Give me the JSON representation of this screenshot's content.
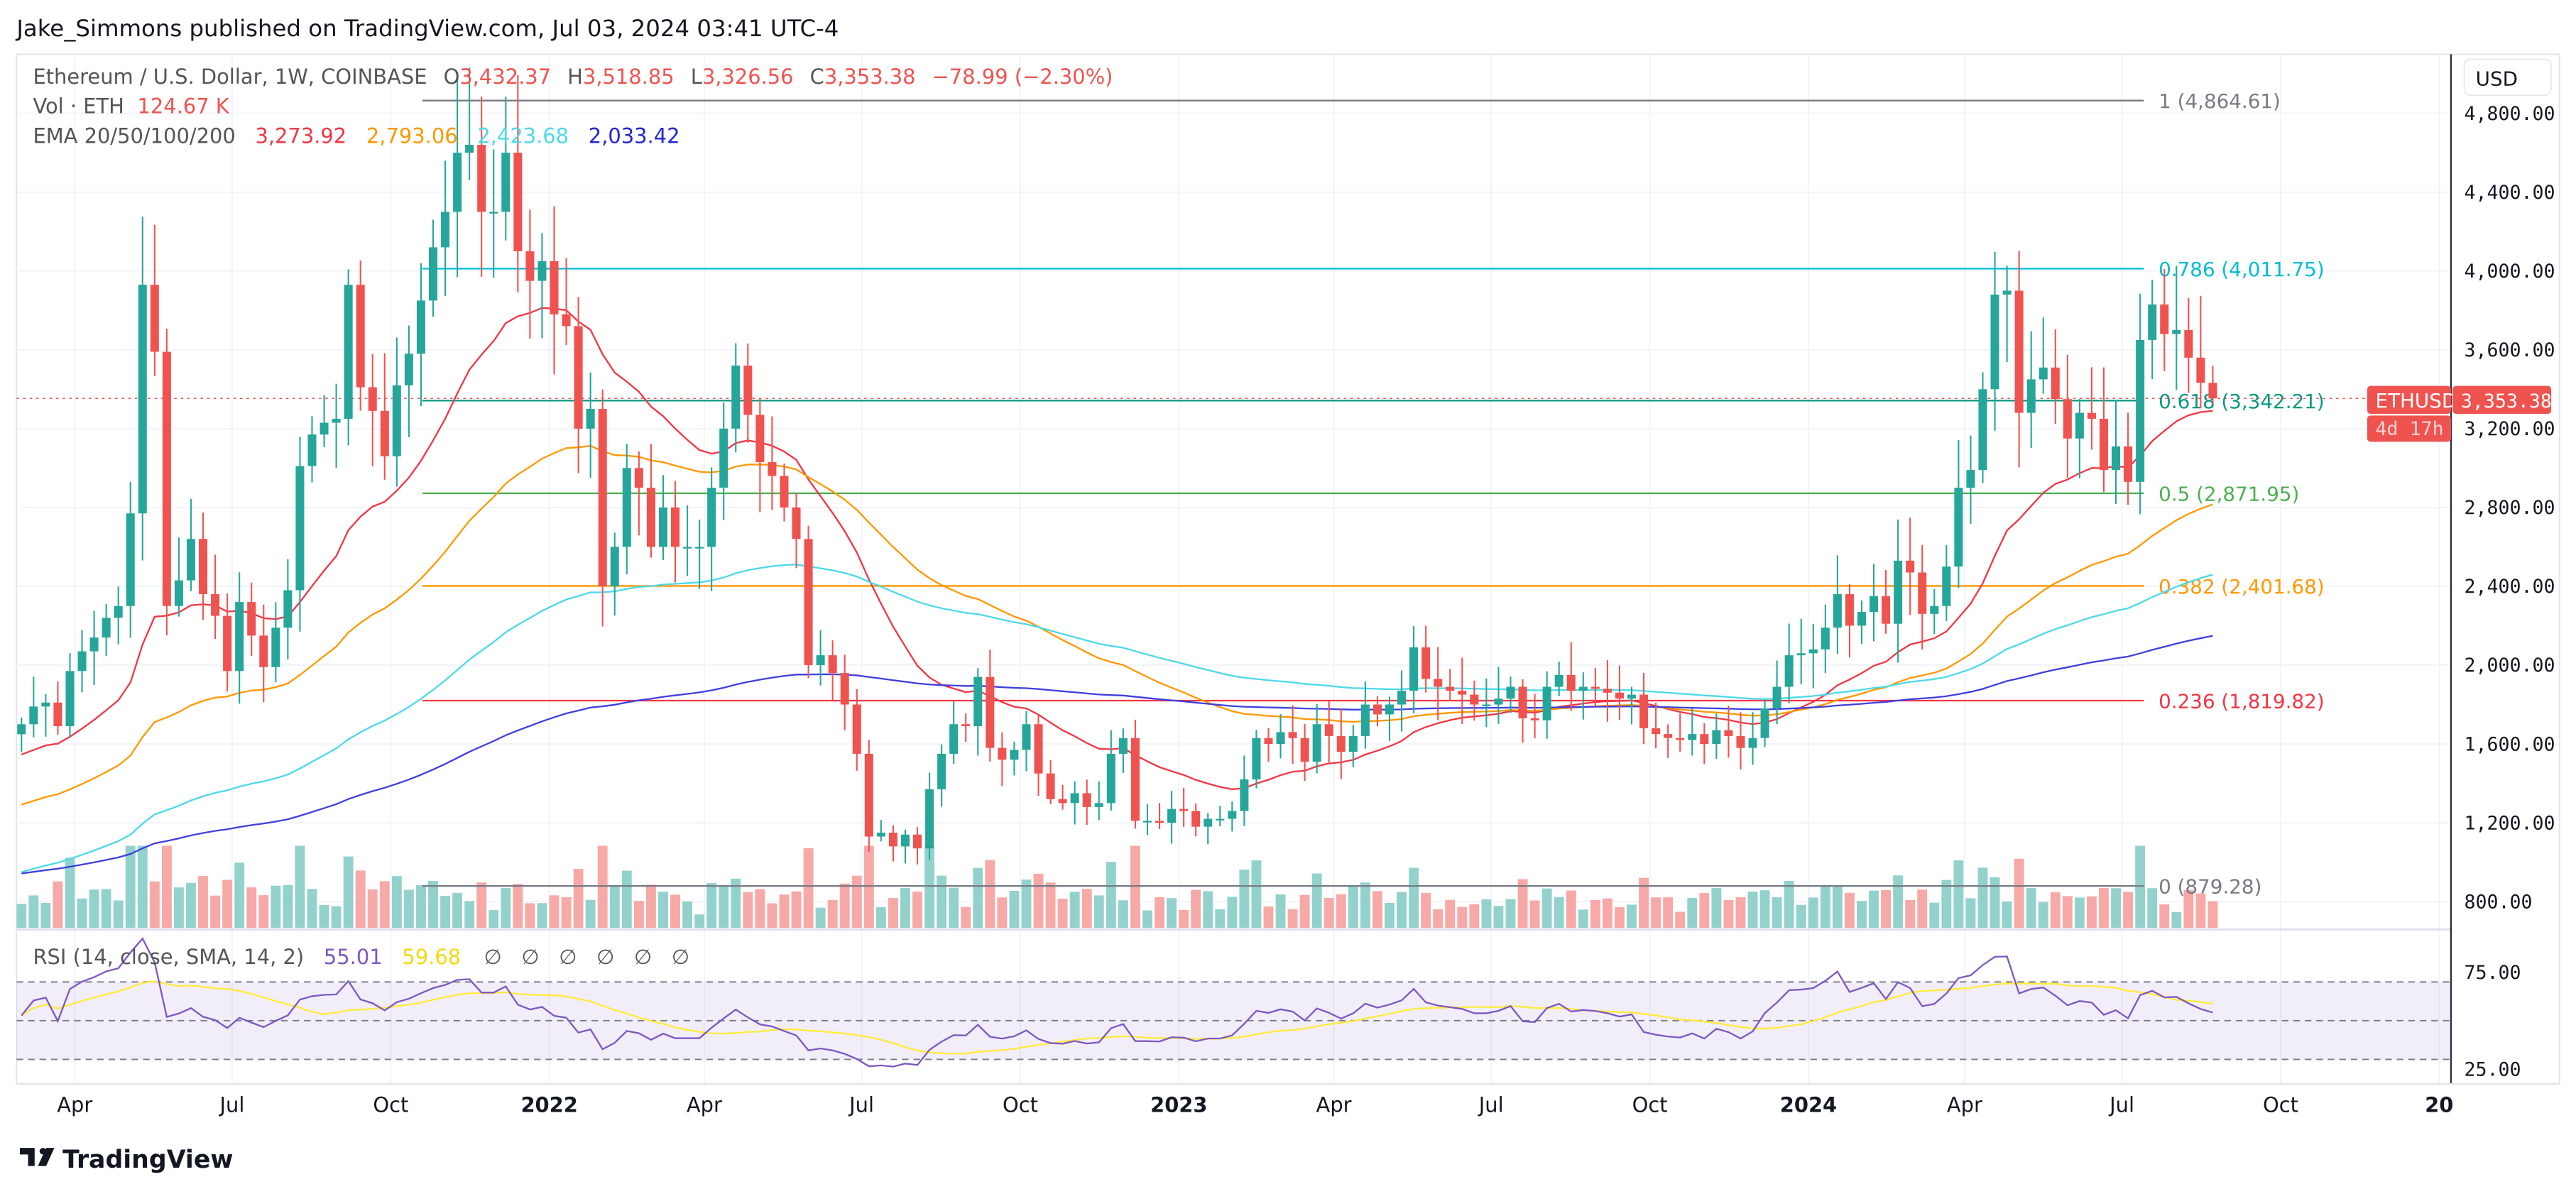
{
  "header": {
    "published": "Jake_Simmons published on TradingView.com, Jul 03, 2024 03:41 UTC-4"
  },
  "legend": {
    "symbol": "Ethereum / U.S. Dollar, 1W, COINBASE",
    "o_label": "O",
    "o": "3,432.37",
    "h_label": "H",
    "h": "3,518.85",
    "l_label": "L",
    "l": "3,326.56",
    "c_label": "C",
    "c": "3,353.38",
    "change": "−78.99 (−2.30%)",
    "vol_label": "Vol · ETH",
    "vol": "124.67 K",
    "ema_label": "EMA 20/50/100/200",
    "ema20": "3,273.92",
    "ema50": "2,793.06",
    "ema100": "2,423.68",
    "ema200": "2,033.42",
    "rsi_label": "RSI (14, close, SMA, 14, 2)",
    "rsi": "55.01",
    "rsi_sma": "59.68",
    "rsi_empty": [
      "∅",
      "∅",
      "∅",
      "∅",
      "∅",
      "∅"
    ]
  },
  "price_tag": {
    "symbol": "ETHUSD",
    "price": "3,353.38",
    "countdown": "4d 17h"
  },
  "footer": {
    "logo": "TradingView"
  },
  "colors": {
    "up": "#26a69a",
    "down": "#ef5350",
    "ema20": "#f23645",
    "ema50": "#ff9800",
    "ema100": "#4dd9e8",
    "ema200": "#3f3fdf",
    "rsi": "#7e57c2",
    "rsi_sma": "#ffeb3b"
  },
  "chart_data": {
    "type": "candlestick",
    "interval": "1W",
    "start": "2021-03-01",
    "currency": "USD",
    "ylim": [
      700,
      4950
    ],
    "y_ticks": [
      "4,800.00",
      "4,400.00",
      "4,000.00",
      "3,600.00",
      "3,200.00",
      "2,800.00",
      "2,400.00",
      "2,000.00",
      "1,600.00",
      "1,200.00",
      "800.00"
    ],
    "y_tick_values": [
      4800,
      4400,
      4000,
      3600,
      3200,
      2800,
      2400,
      2000,
      1600,
      1200,
      800
    ],
    "rsi_ticks": [
      "75.00",
      "25.00"
    ],
    "x_ticks": [
      "Apr",
      "Jul",
      "Oct",
      "2022",
      "Apr",
      "Jul",
      "Oct",
      "2023",
      "Apr",
      "Jul",
      "Oct",
      "2024",
      "Apr",
      "Jul",
      "Oct",
      "20"
    ],
    "x_tick_weeks": [
      4.4,
      17.4,
      30.5,
      43.6,
      56.4,
      69.4,
      82.5,
      95.6,
      108.4,
      121.4,
      134.5,
      147.6,
      160.5,
      173.5,
      186.6,
      199.7
    ],
    "closes": [
      1700,
      1790,
      1810,
      1690,
      1970,
      2070,
      2140,
      2240,
      2300,
      2770,
      3930,
      3590,
      2300,
      2430,
      2640,
      2360,
      2250,
      1970,
      2320,
      2150,
      1990,
      2190,
      2380,
      3010,
      3170,
      3230,
      3250,
      3930,
      3410,
      3290,
      3060,
      3420,
      3580,
      3850,
      4120,
      4300,
      4600,
      4640,
      4300,
      4300,
      4600,
      4100,
      3950,
      4050,
      3780,
      3720,
      3200,
      3300,
      2400,
      2600,
      3000,
      2900,
      2600,
      2800,
      2600,
      2600,
      2600,
      2900,
      3200,
      3520,
      3270,
      3030,
      2960,
      2800,
      2640,
      2000,
      2050,
      1960,
      1800,
      1550,
      1130,
      1150,
      1080,
      1140,
      1070,
      1370,
      1550,
      1700,
      1690,
      1940,
      1580,
      1520,
      1570,
      1700,
      1450,
      1320,
      1300,
      1350,
      1280,
      1300,
      1550,
      1630,
      1210,
      1210,
      1200,
      1270,
      1260,
      1180,
      1220,
      1220,
      1260,
      1420,
      1630,
      1600,
      1660,
      1630,
      1510,
      1700,
      1640,
      1560,
      1640,
      1800,
      1750,
      1800,
      1870,
      2090,
      1930,
      1890,
      1870,
      1850,
      1800,
      1800,
      1830,
      1890,
      1730,
      1720,
      1890,
      1950,
      1870,
      1890,
      1880,
      1860,
      1830,
      1850,
      1680,
      1650,
      1630,
      1620,
      1650,
      1600,
      1670,
      1640,
      1580,
      1630,
      1780,
      1890,
      2050,
      2060,
      2080,
      2190,
      2360,
      2200,
      2270,
      2350,
      2210,
      2530,
      2470,
      2260,
      2300,
      2500,
      2900,
      2990,
      3400,
      3880,
      3900,
      3280,
      3450,
      3510,
      3350,
      3150,
      3280,
      3250,
      2990,
      3110,
      2930,
      3650,
      3830,
      3680,
      3700,
      3560,
      3432.37,
      3353.38
    ],
    "last_candle": {
      "open": 3432.37,
      "high": 3518.85,
      "low": 3326.56,
      "close": 3353.38
    },
    "fib_levels": [
      {
        "ratio": "1",
        "price": 4864.61,
        "label": "1 (4,864.61)",
        "color": "#787b86"
      },
      {
        "ratio": "0.786",
        "price": 4011.75,
        "label": "0.786 (4,011.75)",
        "color": "#00bcd4"
      },
      {
        "ratio": "0.618",
        "price": 3342.21,
        "label": "0.618 (3,342.21)",
        "color": "#089981"
      },
      {
        "ratio": "0.5",
        "price": 2871.95,
        "label": "0.5 (2,871.95)",
        "color": "#4caf50"
      },
      {
        "ratio": "0.382",
        "price": 2401.68,
        "label": "0.382 (2,401.68)",
        "color": "#ff9800"
      },
      {
        "ratio": "0.236",
        "price": 1819.82,
        "label": "0.236 (1,819.82)",
        "color": "#f23645"
      },
      {
        "ratio": "0",
        "price": 879.28,
        "label": "0 (879.28)",
        "color": "#787b86"
      }
    ],
    "axis_unit": "USD"
  }
}
